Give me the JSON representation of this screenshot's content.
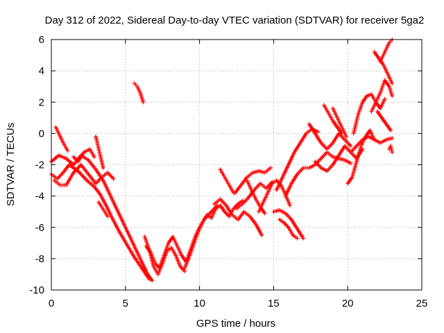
{
  "chart_data": {
    "type": "scatter",
    "title": "Day 312 of 2022, Sidereal Day-to-day VTEC variation (SDTVAR) for receiver 5ga2",
    "xlabel": "GPS time / hours",
    "ylabel": "SDTVAR / TECUs",
    "xlim": [
      0,
      25
    ],
    "ylim": [
      -10,
      6
    ],
    "xticks": [
      0,
      5,
      10,
      15,
      20,
      25
    ],
    "yticks": [
      -10,
      -8,
      -6,
      -4,
      -2,
      0,
      2,
      4,
      6
    ],
    "grid": true,
    "marker": "plus",
    "color": "#ff0000",
    "series": [
      {
        "x": [
          0.0,
          0.5,
          1.0,
          1.5,
          2.0,
          2.5,
          3.0,
          3.5,
          4.0,
          4.5,
          5.0,
          5.5,
          6.0,
          6.5,
          6.8
        ],
        "y": [
          -1.8,
          -1.4,
          -1.6,
          -2.0,
          -1.4,
          -1.7,
          -2.3,
          -3.0,
          -4.0,
          -5.0,
          -6.0,
          -7.0,
          -8.0,
          -9.0,
          -9.4
        ]
      },
      {
        "x": [
          0.0,
          0.4,
          0.8,
          1.2,
          1.8,
          2.4,
          2.9,
          3.3,
          3.7,
          4.1,
          4.6,
          5.1,
          5.6,
          6.1,
          6.6
        ],
        "y": [
          -2.6,
          -2.9,
          -2.5,
          -2.0,
          -2.4,
          -3.0,
          -3.4,
          -3.9,
          -4.6,
          -5.4,
          -6.3,
          -7.1,
          -7.9,
          -8.6,
          -9.3
        ]
      },
      {
        "x": [
          0.2,
          0.6,
          1.0,
          1.5,
          2.0,
          2.5,
          3.0,
          3.4,
          3.8,
          4.2
        ],
        "y": [
          -3.0,
          -3.3,
          -3.3,
          -2.5,
          -2.0,
          -2.6,
          -3.2,
          -2.8,
          -2.5,
          -2.9
        ]
      },
      {
        "x": [
          0.3,
          0.5,
          0.8,
          1.1
        ],
        "y": [
          0.4,
          0.0,
          -0.6,
          -1.1
        ]
      },
      {
        "x": [
          1.5,
          1.8,
          2.2,
          2.6,
          2.9
        ],
        "y": [
          -1.5,
          -1.8,
          -1.2,
          -1.0,
          -1.5
        ]
      },
      {
        "x": [
          3.0,
          3.2,
          3.4,
          3.5
        ],
        "y": [
          -0.2,
          -1.0,
          -1.8,
          -2.2
        ]
      },
      {
        "x": [
          3.2,
          3.4,
          3.6,
          3.8
        ],
        "y": [
          -4.4,
          -4.7,
          -5.0,
          -5.3
        ]
      },
      {
        "x": [
          5.6,
          5.8,
          6.0,
          6.2
        ],
        "y": [
          3.2,
          3.0,
          2.6,
          2.0
        ]
      },
      {
        "x": [
          6.4,
          6.7,
          7.0,
          7.3,
          7.6,
          7.9,
          8.2,
          8.5,
          8.8,
          9.1,
          9.4,
          9.7,
          10.0,
          10.3,
          10.6,
          10.9,
          11.2
        ],
        "y": [
          -7.2,
          -7.6,
          -8.3,
          -8.6,
          -7.8,
          -7.0,
          -6.6,
          -7.2,
          -7.8,
          -8.2,
          -7.4,
          -6.6,
          -6.0,
          -5.5,
          -5.2,
          -4.9,
          -4.6
        ]
      },
      {
        "x": [
          6.3,
          6.6,
          6.9,
          7.2,
          7.5,
          7.8,
          8.1,
          8.4,
          8.7,
          9.0
        ],
        "y": [
          -6.6,
          -7.4,
          -8.5,
          -9.0,
          -8.3,
          -7.5,
          -7.3,
          -7.8,
          -8.5,
          -8.8
        ]
      },
      {
        "x": [
          9.0,
          9.3,
          9.6,
          9.9,
          10.2,
          10.5,
          10.8,
          11.1,
          11.4,
          11.7,
          12.0,
          12.3,
          12.6,
          12.9
        ],
        "y": [
          -8.6,
          -7.9,
          -7.1,
          -6.3,
          -5.7,
          -5.2,
          -5.4,
          -4.8,
          -4.6,
          -5.0,
          -5.3,
          -4.8,
          -4.5,
          -4.3
        ]
      },
      {
        "x": [
          11.0,
          11.4,
          11.8,
          12.2,
          12.6,
          13.0,
          13.4,
          13.8,
          14.2
        ],
        "y": [
          -4.5,
          -4.2,
          -4.6,
          -5.2,
          -5.5,
          -5.0,
          -5.3,
          -5.8,
          -6.5
        ]
      },
      {
        "x": [
          11.4,
          11.7,
          12.0,
          12.3
        ],
        "y": [
          -2.3,
          -2.8,
          -3.3,
          -3.8
        ]
      },
      {
        "x": [
          12.4,
          12.8,
          13.2,
          13.6,
          14.0,
          14.4,
          14.8
        ],
        "y": [
          -3.8,
          -3.3,
          -2.8,
          -2.5,
          -2.4,
          -2.5,
          -2.2
        ]
      },
      {
        "x": [
          12.5,
          12.9,
          13.3,
          13.7,
          14.1,
          14.5,
          14.9
        ],
        "y": [
          -4.8,
          -4.5,
          -4.1,
          -3.6,
          -3.2,
          -3.5,
          -3.1
        ]
      },
      {
        "x": [
          13.2,
          13.5,
          13.8,
          14.1,
          14.4
        ],
        "y": [
          -3.0,
          -3.6,
          -4.2,
          -4.7,
          -5.1
        ]
      },
      {
        "x": [
          14.0,
          14.3,
          14.6,
          14.9,
          15.2,
          15.5,
          15.8,
          16.1
        ],
        "y": [
          -5.0,
          -4.4,
          -3.8,
          -3.2,
          -3.0,
          -3.3,
          -3.9,
          -4.6
        ]
      },
      {
        "x": [
          15.0,
          15.4,
          15.8,
          16.2,
          16.6,
          17.0
        ],
        "y": [
          -5.0,
          -4.9,
          -5.1,
          -5.5,
          -6.1,
          -6.7
        ]
      },
      {
        "x": [
          15.4,
          15.7,
          16.0,
          16.3,
          16.6
        ],
        "y": [
          -5.5,
          -5.7,
          -6.0,
          -6.5,
          -6.7
        ]
      },
      {
        "x": [
          15.2,
          15.6,
          16.0,
          16.4,
          16.8,
          17.2,
          17.6,
          18.0
        ],
        "y": [
          -3.6,
          -2.8,
          -2.0,
          -1.2,
          -0.6,
          0.0,
          0.3,
          0.1
        ]
      },
      {
        "x": [
          15.8,
          16.2,
          16.6,
          17.0,
          17.4,
          17.8,
          18.2,
          18.6,
          19.0,
          19.4,
          19.8,
          20.2
        ],
        "y": [
          -4.0,
          -3.2,
          -2.6,
          -2.2,
          -2.2,
          -2.0,
          -1.6,
          -1.2,
          -1.5,
          -1.6,
          -1.7,
          -1.9
        ]
      },
      {
        "x": [
          17.4,
          17.8,
          18.2,
          18.6,
          19.0,
          19.4,
          19.8,
          20.2
        ],
        "y": [
          0.6,
          0.0,
          -0.6,
          -1.0,
          -0.6,
          0.0,
          -0.4,
          -0.8
        ]
      },
      {
        "x": [
          17.8,
          18.2,
          18.6,
          19.0,
          19.4,
          19.8,
          20.2,
          20.6,
          21.0
        ],
        "y": [
          -1.8,
          -2.2,
          -2.4,
          -2.0,
          -1.4,
          -0.8,
          -1.2,
          -1.6,
          -1.0
        ]
      },
      {
        "x": [
          18.4,
          18.7,
          19.0,
          19.3,
          19.6
        ],
        "y": [
          1.8,
          1.3,
          0.8,
          0.4,
          0.0
        ]
      },
      {
        "x": [
          19.0,
          19.3,
          19.6,
          19.9
        ],
        "y": [
          1.6,
          1.0,
          0.4,
          -0.2
        ]
      },
      {
        "x": [
          20.0,
          20.3,
          20.6,
          20.9,
          21.2,
          21.5,
          21.8
        ],
        "y": [
          -3.2,
          -2.8,
          -1.8,
          -0.8,
          -0.2,
          0.2,
          -0.4
        ]
      },
      {
        "x": [
          20.2,
          20.6,
          21.0,
          21.4,
          21.8,
          22.2,
          22.6,
          23.0
        ],
        "y": [
          -1.2,
          -0.8,
          -0.4,
          -0.2,
          -0.4,
          -0.6,
          -0.4,
          -0.3
        ]
      },
      {
        "x": [
          20.4,
          20.7,
          21.0,
          21.3,
          21.6,
          21.9,
          22.2,
          22.5
        ],
        "y": [
          0.0,
          1.2,
          2.0,
          2.4,
          2.5,
          2.0,
          1.6,
          2.2
        ]
      },
      {
        "x": [
          21.6,
          21.9,
          22.2,
          22.5,
          22.8,
          23.0
        ],
        "y": [
          1.4,
          2.0,
          2.6,
          3.4,
          3.0,
          2.4
        ]
      },
      {
        "x": [
          22.0,
          22.3,
          22.6,
          22.9
        ],
        "y": [
          1.4,
          1.0,
          0.6,
          0.2
        ]
      },
      {
        "x": [
          21.8,
          22.1,
          22.4,
          22.7,
          23.0
        ],
        "y": [
          5.2,
          4.8,
          4.4,
          3.8,
          3.2
        ]
      },
      {
        "x": [
          22.2,
          22.4,
          22.6,
          22.8,
          23.0
        ],
        "y": [
          4.6,
          5.0,
          5.4,
          5.8,
          6.0
        ]
      },
      {
        "x": [
          22.8,
          22.9,
          23.0
        ],
        "y": [
          -1.0,
          -0.8,
          -1.2
        ]
      }
    ]
  }
}
